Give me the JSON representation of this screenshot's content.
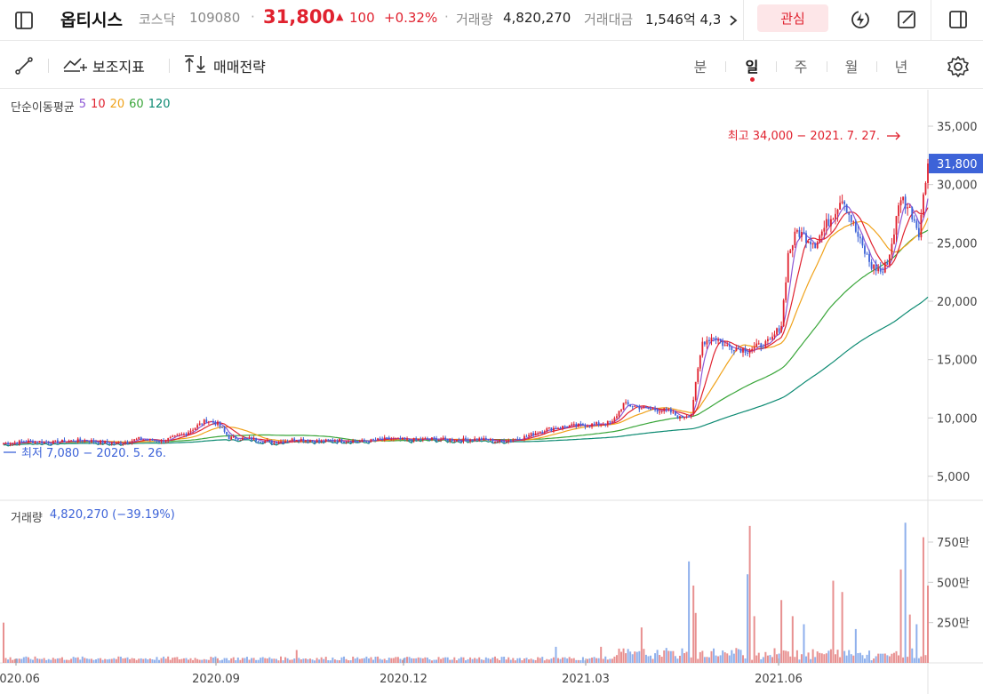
{
  "header": {
    "stock_name": "옵티시스",
    "market": "코스닥",
    "code": "109080",
    "price": "31,800",
    "change": "100",
    "change_pct": "+0.32%",
    "volume_label": "거래량",
    "volume_value": "4,820,270",
    "amount_label": "거래대금",
    "amount_value": "1,546억 4,3",
    "watch_label": "관심",
    "colors": {
      "up": "#e0222f",
      "down": "#3d63d8",
      "watch_bg": "#fde6e8"
    }
  },
  "toolbar": {
    "indicator_label": "보조지표",
    "strategy_label": "매매전략",
    "periods": [
      "분",
      "일",
      "주",
      "월",
      "년"
    ],
    "active_period": "일"
  },
  "chart_data": {
    "type": "candlestick",
    "ma_legend": {
      "title": "단순이동평균",
      "periods": [
        {
          "label": "5",
          "color": "#8e59d6"
        },
        {
          "label": "10",
          "color": "#e0222f"
        },
        {
          "label": "20",
          "color": "#f0a21a"
        },
        {
          "label": "60",
          "color": "#3aa63a"
        },
        {
          "label": "120",
          "color": "#0c8a72"
        }
      ]
    },
    "price_axis": {
      "ticks": [
        "35,000",
        "30,000",
        "25,000",
        "20,000",
        "15,000",
        "10,000",
        "5,000"
      ],
      "tick_values": [
        35000,
        30000,
        25000,
        20000,
        15000,
        10000,
        5000
      ]
    },
    "current_price_label": "31,800",
    "high_annotation": "최고 34,000 − 2021. 7. 27.",
    "low_annotation": "최저 7,080 − 2020. 5. 26.",
    "volume_legend": {
      "label": "거래량",
      "value": "4,820,270 (−39.19%)"
    },
    "volume_axis": {
      "ticks": [
        "750만",
        "500만",
        "250만"
      ],
      "tick_values": [
        7500000,
        5000000,
        2500000
      ]
    },
    "x_labels": [
      "2020.06",
      "2020.09",
      "2020.12",
      "2021.03",
      "2021.06"
    ],
    "price_path": [
      [
        0,
        7800
      ],
      [
        10,
        8000
      ],
      [
        20,
        7900
      ],
      [
        35,
        8100
      ],
      [
        50,
        7800
      ],
      [
        60,
        8200
      ],
      [
        70,
        8000
      ],
      [
        80,
        8600
      ],
      [
        90,
        9800
      ],
      [
        95,
        9500
      ],
      [
        100,
        8300
      ],
      [
        110,
        8200
      ],
      [
        120,
        7900
      ],
      [
        130,
        8200
      ],
      [
        140,
        8000
      ],
      [
        150,
        8100
      ],
      [
        160,
        8000
      ],
      [
        170,
        8200
      ],
      [
        180,
        8100
      ],
      [
        190,
        8200
      ],
      [
        200,
        8100
      ],
      [
        210,
        8200
      ],
      [
        220,
        8000
      ],
      [
        230,
        8300
      ],
      [
        240,
        9000
      ],
      [
        250,
        9300
      ],
      [
        260,
        9400
      ],
      [
        270,
        9600
      ],
      [
        275,
        11200
      ],
      [
        285,
        10800
      ],
      [
        295,
        10600
      ],
      [
        300,
        10000
      ],
      [
        305,
        10400
      ],
      [
        310,
        16500
      ],
      [
        315,
        17000
      ],
      [
        320,
        16200
      ],
      [
        330,
        15800
      ],
      [
        340,
        16500
      ],
      [
        345,
        18000
      ],
      [
        348,
        24000
      ],
      [
        352,
        26000
      ],
      [
        360,
        25000
      ],
      [
        368,
        27500
      ],
      [
        372,
        29000
      ],
      [
        380,
        25000
      ],
      [
        385,
        23000
      ],
      [
        390,
        22500
      ],
      [
        393,
        24000
      ],
      [
        398,
        29000
      ],
      [
        403,
        27500
      ],
      [
        406,
        26000
      ],
      [
        410,
        31800
      ]
    ],
    "volume_spikes": [
      [
        0,
        2500000
      ],
      [
        130,
        800000
      ],
      [
        245,
        1000000
      ],
      [
        265,
        1000000
      ],
      [
        283,
        2200000
      ],
      [
        304,
        6300000
      ],
      [
        306,
        4800000
      ],
      [
        307,
        3100000
      ],
      [
        330,
        5500000
      ],
      [
        331,
        8500000
      ],
      [
        333,
        2900000
      ],
      [
        345,
        3900000
      ],
      [
        350,
        2900000
      ],
      [
        355,
        2400000
      ],
      [
        368,
        5100000
      ],
      [
        372,
        4400000
      ],
      [
        378,
        2100000
      ],
      [
        398,
        5800000
      ],
      [
        400,
        8700000
      ],
      [
        402,
        3000000
      ],
      [
        405,
        2400000
      ],
      [
        408,
        7800000
      ],
      [
        410,
        4800000
      ]
    ]
  }
}
